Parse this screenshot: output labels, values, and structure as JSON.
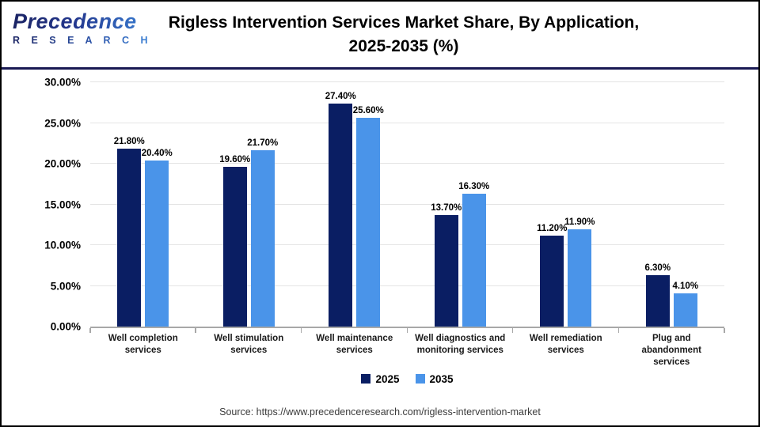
{
  "logo": {
    "name": "Precedence",
    "sub": "R E S E A R C H"
  },
  "header": {
    "title_lines": [
      "Rigless Intervention Services Market Share, By Application,",
      "2025-2035 (%)"
    ]
  },
  "chart_data": {
    "type": "bar",
    "title": "Rigless Intervention Services Market Share, By Application, 2025-2035 (%)",
    "categories": [
      "Well completion services",
      "Well stimulation services",
      "Well maintenance services",
      "Well diagnostics and monitoring services",
      "Well remediation services",
      "Plug and abandonment services"
    ],
    "series": [
      {
        "name": "2025",
        "color": "#0a1e63",
        "values": [
          21.8,
          19.6,
          27.4,
          13.7,
          11.2,
          6.3
        ]
      },
      {
        "name": "2035",
        "color": "#4a94e9",
        "values": [
          20.4,
          21.7,
          25.6,
          16.3,
          11.9,
          4.1
        ]
      }
    ],
    "data_labels": [
      [
        "21.80%",
        "19.60%",
        "27.40%",
        "13.70%",
        "11.20%",
        "6.30%"
      ],
      [
        "20.40%",
        "21.70%",
        "25.60%",
        "16.30%",
        "11.90%",
        "4.10%"
      ]
    ],
    "xlabel": "",
    "ylabel": "",
    "ylim": [
      0,
      30
    ],
    "ytick_step": 5,
    "yticks": [
      "0.00%",
      "5.00%",
      "10.00%",
      "15.00%",
      "20.00%",
      "25.00%",
      "30.00%"
    ],
    "grid": true,
    "legend_position": "bottom"
  },
  "footer": {
    "source": "Source: https://www.precedenceresearch.com/rigless-intervention-market"
  },
  "colors": {
    "divider": "#191953",
    "gridline": "#e4e4e4",
    "axis": "#a8a8a8"
  }
}
